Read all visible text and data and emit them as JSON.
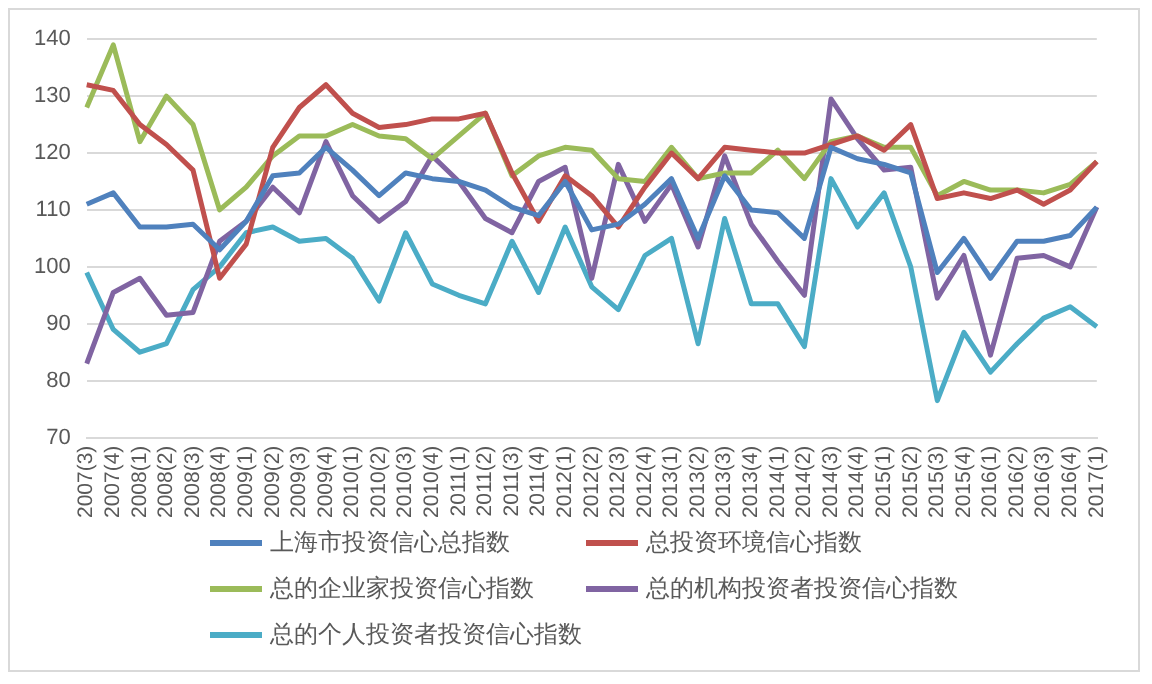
{
  "chart_data": {
    "type": "line",
    "categories": [
      "2007(3)",
      "2007(4)",
      "2008(1)",
      "2008(2)",
      "2008(3)",
      "2008(4)",
      "2009(1)",
      "2009(2)",
      "2009(3)",
      "2009(4)",
      "2010(1)",
      "2010(2)",
      "2010(3)",
      "2010(4)",
      "2011(1)",
      "2011(2)",
      "2011(3)",
      "2011(4)",
      "2012(1)",
      "2012(2)",
      "2012(3)",
      "2012(4)",
      "2013(1)",
      "2013(2)",
      "2013(3)",
      "2013(4)",
      "2014(1)",
      "2014(2)",
      "2014(3)",
      "2014(4)",
      "2015(1)",
      "2015(2)",
      "2015(3)",
      "2015(4)",
      "2016(1)",
      "2016(2)",
      "2016(3)",
      "2016(4)",
      "2017(1)"
    ],
    "series": [
      {
        "name": "上海市投资信心总指数",
        "color": "#4f81bd",
        "values": [
          111,
          113,
          107,
          107,
          107.5,
          103,
          108,
          116,
          116.5,
          121,
          117,
          112.5,
          116.5,
          115.5,
          115,
          113.5,
          110.5,
          109,
          115,
          106.5,
          107.5,
          111,
          115.5,
          105,
          116,
          110,
          109.5,
          105,
          121,
          119,
          118,
          116.5,
          99,
          105,
          98,
          104.5,
          104.5,
          105.5,
          110.5
        ]
      },
      {
        "name": "总投资环境信心指数",
        "color": "#c0504d",
        "values": [
          132,
          131,
          125,
          121.5,
          117,
          98,
          104,
          121,
          128,
          132,
          127,
          124.5,
          125,
          126,
          126,
          127,
          116.5,
          108,
          116,
          112.5,
          107,
          114,
          120,
          115.5,
          121,
          120.5,
          120,
          120,
          121.5,
          123,
          120.5,
          125,
          112,
          113,
          112,
          113.5,
          111,
          113.5,
          118.5
        ]
      },
      {
        "name": "总的企业家投资信心指数",
        "color": "#9bbb59",
        "values": [
          128,
          139,
          122,
          130,
          125,
          110,
          114,
          119.5,
          123,
          123,
          125,
          123,
          122.5,
          119,
          123,
          127,
          116,
          119.5,
          121,
          120.5,
          115.5,
          115,
          121,
          115.5,
          116.5,
          116.5,
          120.5,
          115.5,
          122,
          123,
          121,
          121,
          112.5,
          115,
          113.5,
          113.5,
          113,
          114.5,
          118.5
        ]
      },
      {
        "name": "总的机构投资者投资信心指数",
        "color": "#8064a2",
        "values": [
          83,
          95.5,
          98,
          91.5,
          92,
          104.5,
          108,
          114,
          109.5,
          122,
          112.5,
          108,
          111.5,
          119.5,
          115,
          108.5,
          106,
          115,
          117.5,
          98,
          118,
          108,
          114.5,
          103.5,
          119.5,
          107.5,
          101,
          95,
          129.5,
          122.5,
          117,
          117.5,
          94.5,
          102,
          84.5,
          101.5,
          102,
          100,
          110.5
        ]
      },
      {
        "name": "总的个人投资者投资信心指数",
        "color": "#4bacc6",
        "values": [
          99,
          89,
          85,
          86.5,
          96,
          100,
          106,
          107,
          104.5,
          105,
          101.5,
          94,
          106,
          97,
          95,
          93.5,
          104.5,
          95.5,
          107,
          96.5,
          92.5,
          102,
          105,
          86.5,
          108.5,
          93.5,
          93.5,
          86,
          115.5,
          107,
          113,
          100,
          76.5,
          88.5,
          81.5,
          86.5,
          91,
          93,
          89.5
        ]
      }
    ],
    "ylim": [
      70,
      140
    ],
    "yticks": [
      70,
      80,
      90,
      100,
      110,
      120,
      130,
      140
    ],
    "grid": "y",
    "legend": "bottom",
    "marker": "none",
    "line_style": "solid"
  }
}
